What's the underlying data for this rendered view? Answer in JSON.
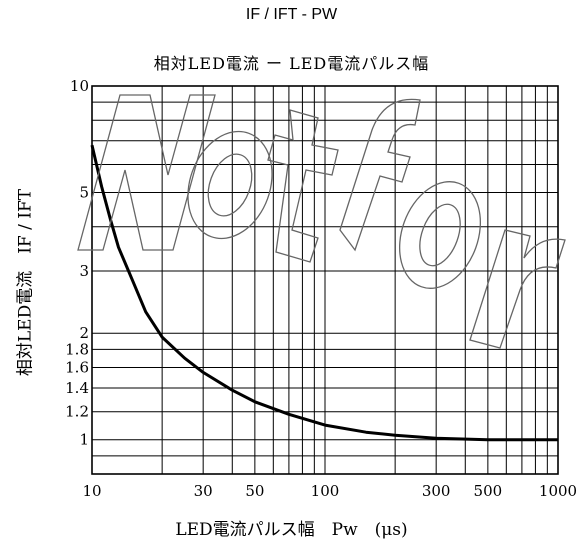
{
  "header": {
    "top_title": "IF / IFT - PW",
    "jp_title": "相対LED電流 ー LED電流パルス幅"
  },
  "chart_data": {
    "type": "line",
    "title": "相対LED電流 ー LED電流パルス幅",
    "xlabel": "LED電流パルス幅　Pw　(μs)",
    "ylabel": "相対LED電流　IF / IFT",
    "x_scale": "log",
    "y_scale": "log",
    "xlim": [
      10,
      1000
    ],
    "ylim": [
      0.8,
      10
    ],
    "x_ticks": [
      10,
      30,
      50,
      100,
      300,
      500,
      1000
    ],
    "x_tick_labels": [
      "10",
      "30",
      "50",
      "100",
      "300",
      "500",
      "1000"
    ],
    "y_ticks": [
      1,
      1.2,
      1.4,
      1.6,
      1.8,
      2,
      3,
      5,
      10
    ],
    "y_tick_labels": [
      "1",
      "1.2",
      "1.4",
      "1.6",
      "1.8",
      "2",
      "3",
      "5",
      "10"
    ],
    "grid": true,
    "series": [
      {
        "name": "",
        "x": [
          10,
          11,
          12,
          13,
          15,
          17,
          20,
          25,
          30,
          40,
          50,
          70,
          100,
          150,
          200,
          300,
          500,
          700,
          1000
        ],
        "y": [
          6.8,
          5.2,
          4.2,
          3.5,
          2.8,
          2.3,
          1.95,
          1.7,
          1.55,
          1.38,
          1.28,
          1.18,
          1.1,
          1.05,
          1.03,
          1.01,
          1.0,
          1.0,
          1.0
        ]
      }
    ]
  },
  "colors": {
    "line": "#000000",
    "grid": "#000000",
    "watermark": "#555555"
  }
}
